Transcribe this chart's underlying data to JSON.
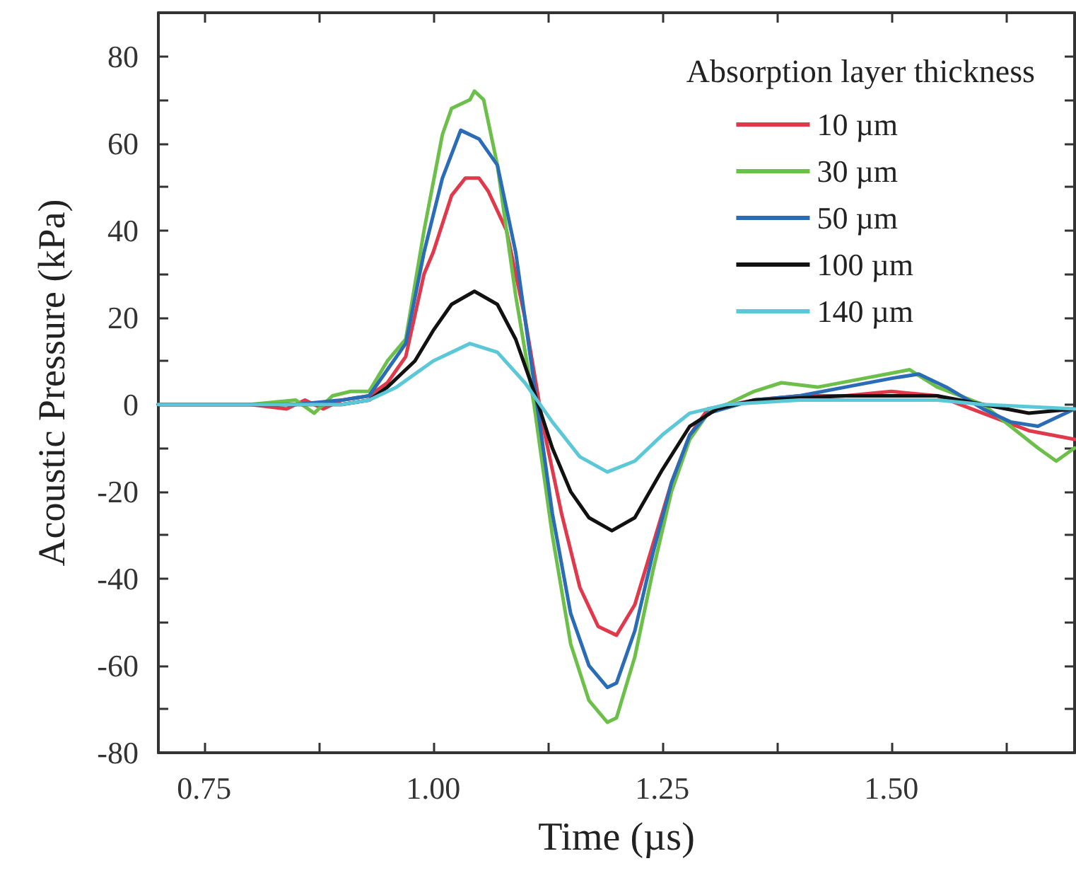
{
  "chart_data": {
    "type": "line",
    "xlabel": "Time (µs)",
    "ylabel": "Acoustic Pressure (kPa)",
    "legend_title": "Absorption layer thickness",
    "legend": "top right",
    "grid": false,
    "marker": "none",
    "line_style": "solid",
    "xlim": [
      0.7,
      1.7
    ],
    "xticks": [
      0.75,
      {
        "value": 0.875,
        "label": null
      },
      {
        "value": 1,
        "label": "1.00"
      },
      {
        "value": 1.125,
        "label": null
      },
      1.25,
      {
        "value": 1.375,
        "label": null
      },
      {
        "value": 1.5,
        "label": "1.50"
      },
      {
        "value": 1.625,
        "label": null
      }
    ],
    "ylim": [
      -80,
      90
    ],
    "yticks": [
      -80,
      {
        "value": -70,
        "label": null
      },
      -60,
      {
        "value": -50,
        "label": null
      },
      -40,
      {
        "value": -30,
        "label": null
      },
      -20,
      {
        "value": -10,
        "label": null
      },
      0,
      {
        "value": 10,
        "label": null
      },
      20,
      {
        "value": 30,
        "label": null
      },
      40,
      {
        "value": 50,
        "label": null
      },
      60,
      {
        "value": 70,
        "label": null
      },
      80,
      {
        "value": 90,
        "label": null
      }
    ],
    "series": [
      {
        "name": "10 µm",
        "color": "#e0394b",
        "x": [
          0.7,
          0.8,
          0.84,
          0.86,
          0.88,
          0.9,
          0.93,
          0.95,
          0.97,
          0.99,
          1.0,
          1.02,
          1.035,
          1.05,
          1.06,
          1.08,
          1.1,
          1.12,
          1.14,
          1.16,
          1.18,
          1.2,
          1.22,
          1.24,
          1.26,
          1.28,
          1.3,
          1.35,
          1.4,
          1.45,
          1.5,
          1.55,
          1.6,
          1.65,
          1.7
        ],
        "values": [
          0,
          0,
          -1,
          1,
          -1,
          1,
          2,
          5,
          11,
          30,
          35,
          48,
          52,
          52,
          49,
          40,
          20,
          -5,
          -25,
          -42,
          -51,
          -53,
          -46,
          -32,
          -18,
          -7,
          -1,
          1,
          2,
          2,
          3,
          2,
          -2,
          -6,
          -8
        ]
      },
      {
        "name": "30 µm",
        "color": "#6cc04a",
        "x": [
          0.7,
          0.8,
          0.85,
          0.87,
          0.89,
          0.91,
          0.93,
          0.95,
          0.97,
          0.99,
          1.01,
          1.02,
          1.04,
          1.045,
          1.055,
          1.07,
          1.09,
          1.11,
          1.13,
          1.15,
          1.17,
          1.19,
          1.2,
          1.22,
          1.24,
          1.26,
          1.28,
          1.3,
          1.35,
          1.38,
          1.42,
          1.47,
          1.52,
          1.55,
          1.6,
          1.63,
          1.66,
          1.68,
          1.7
        ],
        "values": [
          0,
          0,
          1,
          -2,
          2,
          3,
          3,
          10,
          15,
          40,
          62,
          68,
          70,
          72,
          70,
          55,
          25,
          0,
          -30,
          -55,
          -68,
          -73,
          -72,
          -58,
          -38,
          -20,
          -8,
          -2,
          3,
          5,
          4,
          6,
          8,
          4,
          0,
          -5,
          -10,
          -13,
          -10
        ]
      },
      {
        "name": "50 µm",
        "color": "#2a6cb5",
        "x": [
          0.7,
          0.85,
          0.9,
          0.93,
          0.95,
          0.97,
          0.99,
          1.01,
          1.03,
          1.05,
          1.07,
          1.09,
          1.11,
          1.13,
          1.15,
          1.17,
          1.19,
          1.2,
          1.22,
          1.24,
          1.26,
          1.28,
          1.3,
          1.35,
          1.4,
          1.45,
          1.5,
          1.53,
          1.56,
          1.6,
          1.63,
          1.66,
          1.7
        ],
        "values": [
          0,
          0,
          1,
          2,
          8,
          14,
          35,
          52,
          63,
          61,
          55,
          35,
          5,
          -25,
          -48,
          -60,
          -65,
          -64,
          -52,
          -34,
          -18,
          -7,
          -2,
          1,
          2,
          4,
          6,
          7,
          4,
          -1,
          -4,
          -5,
          -1
        ]
      },
      {
        "name": "100 µm",
        "color": "#111111",
        "x": [
          0.7,
          0.9,
          0.93,
          0.95,
          0.98,
          1.0,
          1.02,
          1.045,
          1.07,
          1.09,
          1.11,
          1.13,
          1.15,
          1.17,
          1.195,
          1.22,
          1.25,
          1.28,
          1.31,
          1.35,
          1.45,
          1.55,
          1.6,
          1.65,
          1.7
        ],
        "values": [
          0,
          0,
          1,
          4,
          10,
          17,
          23,
          26,
          23,
          15,
          3,
          -10,
          -20,
          -26,
          -29,
          -26,
          -15,
          -5,
          -1,
          1,
          2,
          2,
          0,
          -2,
          -1
        ]
      },
      {
        "name": "140 µm",
        "color": "#5bc8d8",
        "x": [
          0.7,
          0.9,
          0.93,
          0.96,
          1.0,
          1.04,
          1.07,
          1.1,
          1.13,
          1.16,
          1.19,
          1.22,
          1.25,
          1.28,
          1.32,
          1.4,
          1.55,
          1.6,
          1.7
        ],
        "values": [
          0,
          0,
          1,
          4,
          10,
          14,
          12,
          5,
          -4,
          -12,
          -15.5,
          -13,
          -7,
          -2,
          0,
          1,
          1,
          0,
          -1
        ]
      }
    ]
  }
}
